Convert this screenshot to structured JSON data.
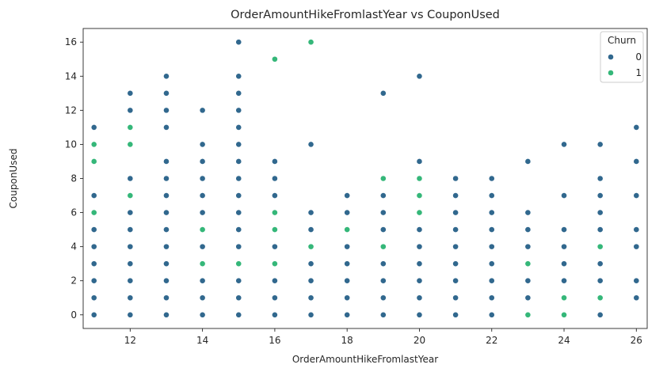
{
  "chart_data": {
    "type": "scatter",
    "title": "OrderAmountHikeFromlastYear vs CouponUsed",
    "xlabel": "OrderAmountHikeFromlastYear",
    "ylabel": "CouponUsed",
    "xlim": [
      10.7,
      26.3
    ],
    "ylim": [
      -0.8,
      16.8
    ],
    "xticks": [
      12,
      14,
      16,
      18,
      20,
      22,
      24,
      26
    ],
    "yticks": [
      0,
      2,
      4,
      6,
      8,
      10,
      12,
      14,
      16
    ],
    "grid": false,
    "legend": {
      "title": "Churn",
      "placement": "top-right"
    },
    "series": [
      {
        "name": "0",
        "color": "#31688e",
        "points": [
          [
            11,
            0
          ],
          [
            11,
            1
          ],
          [
            11,
            2
          ],
          [
            11,
            3
          ],
          [
            11,
            4
          ],
          [
            11,
            5
          ],
          [
            11,
            7
          ],
          [
            11,
            11
          ],
          [
            12,
            0
          ],
          [
            12,
            1
          ],
          [
            12,
            2
          ],
          [
            12,
            3
          ],
          [
            12,
            4
          ],
          [
            12,
            5
          ],
          [
            12,
            6
          ],
          [
            12,
            8
          ],
          [
            12,
            12
          ],
          [
            12,
            13
          ],
          [
            13,
            0
          ],
          [
            13,
            1
          ],
          [
            13,
            2
          ],
          [
            13,
            3
          ],
          [
            13,
            4
          ],
          [
            13,
            5
          ],
          [
            13,
            6
          ],
          [
            13,
            7
          ],
          [
            13,
            8
          ],
          [
            13,
            9
          ],
          [
            13,
            11
          ],
          [
            13,
            12
          ],
          [
            13,
            13
          ],
          [
            13,
            14
          ],
          [
            14,
            0
          ],
          [
            14,
            1
          ],
          [
            14,
            2
          ],
          [
            14,
            4
          ],
          [
            14,
            6
          ],
          [
            14,
            7
          ],
          [
            14,
            8
          ],
          [
            14,
            9
          ],
          [
            14,
            10
          ],
          [
            14,
            12
          ],
          [
            15,
            0
          ],
          [
            15,
            1
          ],
          [
            15,
            2
          ],
          [
            15,
            4
          ],
          [
            15,
            5
          ],
          [
            15,
            6
          ],
          [
            15,
            7
          ],
          [
            15,
            8
          ],
          [
            15,
            9
          ],
          [
            15,
            10
          ],
          [
            15,
            11
          ],
          [
            15,
            12
          ],
          [
            15,
            13
          ],
          [
            15,
            14
          ],
          [
            15,
            16
          ],
          [
            16,
            0
          ],
          [
            16,
            1
          ],
          [
            16,
            2
          ],
          [
            16,
            4
          ],
          [
            16,
            7
          ],
          [
            16,
            8
          ],
          [
            16,
            9
          ],
          [
            17,
            0
          ],
          [
            17,
            1
          ],
          [
            17,
            2
          ],
          [
            17,
            3
          ],
          [
            17,
            5
          ],
          [
            17,
            6
          ],
          [
            17,
            10
          ],
          [
            18,
            0
          ],
          [
            18,
            1
          ],
          [
            18,
            2
          ],
          [
            18,
            3
          ],
          [
            18,
            4
          ],
          [
            18,
            6
          ],
          [
            18,
            7
          ],
          [
            19,
            0
          ],
          [
            19,
            1
          ],
          [
            19,
            2
          ],
          [
            19,
            3
          ],
          [
            19,
            5
          ],
          [
            19,
            6
          ],
          [
            19,
            7
          ],
          [
            19,
            13
          ],
          [
            20,
            0
          ],
          [
            20,
            1
          ],
          [
            20,
            2
          ],
          [
            20,
            3
          ],
          [
            20,
            4
          ],
          [
            20,
            5
          ],
          [
            20,
            9
          ],
          [
            20,
            14
          ],
          [
            21,
            0
          ],
          [
            21,
            1
          ],
          [
            21,
            2
          ],
          [
            21,
            3
          ],
          [
            21,
            4
          ],
          [
            21,
            5
          ],
          [
            21,
            6
          ],
          [
            21,
            7
          ],
          [
            21,
            8
          ],
          [
            22,
            0
          ],
          [
            22,
            1
          ],
          [
            22,
            2
          ],
          [
            22,
            3
          ],
          [
            22,
            4
          ],
          [
            22,
            5
          ],
          [
            22,
            6
          ],
          [
            22,
            7
          ],
          [
            22,
            8
          ],
          [
            23,
            1
          ],
          [
            23,
            2
          ],
          [
            23,
            4
          ],
          [
            23,
            5
          ],
          [
            23,
            6
          ],
          [
            23,
            9
          ],
          [
            24,
            2
          ],
          [
            24,
            3
          ],
          [
            24,
            4
          ],
          [
            24,
            5
          ],
          [
            24,
            7
          ],
          [
            24,
            10
          ],
          [
            25,
            0
          ],
          [
            25,
            2
          ],
          [
            25,
            3
          ],
          [
            25,
            5
          ],
          [
            25,
            6
          ],
          [
            25,
            7
          ],
          [
            25,
            8
          ],
          [
            25,
            10
          ],
          [
            26,
            1
          ],
          [
            26,
            2
          ],
          [
            26,
            4
          ],
          [
            26,
            5
          ],
          [
            26,
            7
          ],
          [
            26,
            9
          ],
          [
            26,
            11
          ]
        ]
      },
      {
        "name": "1",
        "color": "#35b779",
        "points": [
          [
            11,
            6
          ],
          [
            11,
            9
          ],
          [
            11,
            10
          ],
          [
            12,
            7
          ],
          [
            12,
            10
          ],
          [
            12,
            11
          ],
          [
            14,
            3
          ],
          [
            14,
            5
          ],
          [
            15,
            3
          ],
          [
            16,
            3
          ],
          [
            16,
            5
          ],
          [
            16,
            6
          ],
          [
            16,
            15
          ],
          [
            17,
            4
          ],
          [
            17,
            16
          ],
          [
            18,
            5
          ],
          [
            19,
            4
          ],
          [
            19,
            8
          ],
          [
            20,
            6
          ],
          [
            20,
            7
          ],
          [
            20,
            8
          ],
          [
            23,
            0
          ],
          [
            23,
            3
          ],
          [
            24,
            0
          ],
          [
            24,
            1
          ],
          [
            25,
            1
          ],
          [
            25,
            4
          ]
        ]
      }
    ]
  }
}
